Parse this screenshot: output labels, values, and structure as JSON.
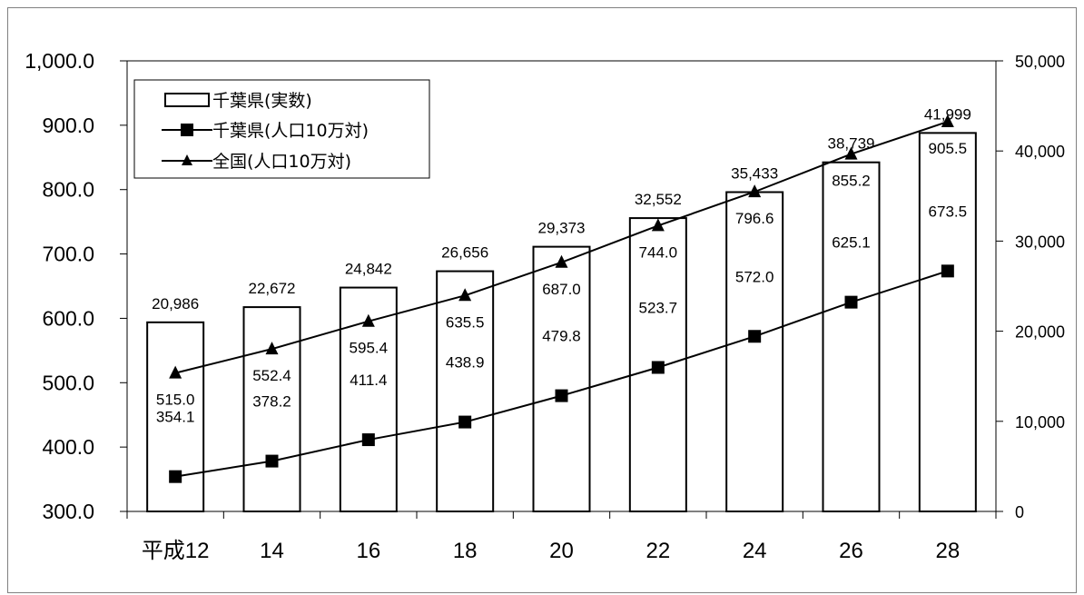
{
  "chart_data": {
    "type": "bar",
    "categories": [
      "平成12",
      "14",
      "16",
      "18",
      "20",
      "22",
      "24",
      "26",
      "28"
    ],
    "bar_series": {
      "name": "千葉県(実数)",
      "values": [
        20986,
        22672,
        24842,
        26656,
        29373,
        32552,
        35433,
        38739,
        41999
      ],
      "labels": [
        "20,986",
        "22,672",
        "24,842",
        "26,656",
        "29,373",
        "32,552",
        "35,433",
        "38,739",
        "41,999"
      ],
      "axis": "right",
      "color": "#ffffff",
      "stroke": "#000000"
    },
    "line_series": [
      {
        "name": "千葉県(人口10万対)",
        "values": [
          354.1,
          378.2,
          411.4,
          438.9,
          479.8,
          523.7,
          572.0,
          625.1,
          673.5
        ],
        "labels": [
          "354.1",
          "378.2",
          "411.4",
          "438.9",
          "479.8",
          "523.7",
          "572.0",
          "625.1",
          "673.5"
        ],
        "marker": "square",
        "axis": "left",
        "color": "#000000"
      },
      {
        "name": "全国(人口10万対)",
        "values": [
          515.0,
          552.4,
          595.4,
          635.5,
          687.0,
          744.0,
          796.6,
          855.2,
          905.5
        ],
        "labels": [
          "515.0",
          "552.4",
          "595.4",
          "635.5",
          "687.0",
          "744.0",
          "796.6",
          "855.2",
          "905.5"
        ],
        "marker": "triangle",
        "axis": "left",
        "color": "#000000"
      }
    ],
    "y_left": {
      "range": [
        300,
        1000
      ],
      "ticks": [
        300,
        400,
        500,
        600,
        700,
        800,
        900,
        1000
      ],
      "tick_labels": [
        "300.0",
        "400.0",
        "500.0",
        "600.0",
        "700.0",
        "800.0",
        "900.0",
        "1,000.0"
      ]
    },
    "y_right": {
      "range": [
        0,
        50000
      ],
      "ticks": [
        0,
        10000,
        20000,
        30000,
        40000,
        50000
      ],
      "tick_labels": [
        "0",
        "10,000",
        "20,000",
        "30,000",
        "40,000",
        "50,000"
      ]
    },
    "legend": {
      "position": "top-left",
      "entries": [
        "千葉県(実数)",
        "千葉県(人口10万対)",
        "全国(人口10万対)"
      ]
    },
    "grid": false,
    "title": "",
    "xlabel": "",
    "ylabel": ""
  }
}
